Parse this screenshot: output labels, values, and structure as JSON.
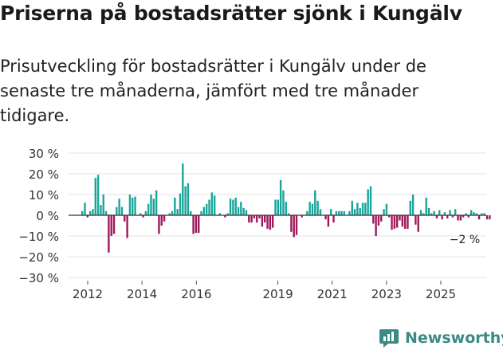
{
  "title": "Priserna på bostadsrätter sjönk i Kungälv",
  "subtitle": "Prisutveckling för bostadsrätter i Kungälv under de senaste tre månaderna, jämfört med tre månader tidigare.",
  "brand": {
    "name": "Newsworthy",
    "icon": "newsworthy-logo-icon",
    "color": "#3b8a84"
  },
  "colors": {
    "positive": "#1aa59a",
    "negative": "#9e1a5a",
    "grid": "#e3e3e3",
    "axis": "#333333"
  },
  "chart_data": {
    "type": "bar",
    "title": "Priserna på bostadsrätter sjönk i Kungälv",
    "xlabel": "",
    "ylabel": "",
    "unit": "%",
    "x_start": 2011.8,
    "x_end": 2026.8,
    "ylim": [
      -30,
      30
    ],
    "y_ticks": [
      {
        "value": 30,
        "label": "30 %"
      },
      {
        "value": 20,
        "label": "20 %"
      },
      {
        "value": 10,
        "label": "10 %"
      },
      {
        "value": 0,
        "label": "0 %"
      },
      {
        "value": -10,
        "label": "−10 %"
      },
      {
        "value": -20,
        "label": "−20 %"
      },
      {
        "value": -30,
        "label": "−30 %"
      }
    ],
    "x_ticks": [
      {
        "value": 2012,
        "label": "2012"
      },
      {
        "value": 2014,
        "label": "2014"
      },
      {
        "value": 2016,
        "label": "2016"
      },
      {
        "value": 2019,
        "label": "2019"
      },
      {
        "value": 2021,
        "label": "2021"
      },
      {
        "value": 2023,
        "label": "2023"
      },
      {
        "value": 2025,
        "label": "2025"
      }
    ],
    "annotation": {
      "text": "−2 %",
      "x": 2026.2,
      "value": -2
    },
    "series": [
      {
        "name": "Prisutveckling",
        "points": [
          [
            2012.1,
            2
          ],
          [
            2012.2,
            6
          ],
          [
            2012.3,
            -1
          ],
          [
            2012.4,
            2
          ],
          [
            2012.5,
            3
          ],
          [
            2012.6,
            18
          ],
          [
            2012.7,
            19.5
          ],
          [
            2012.8,
            5
          ],
          [
            2012.9,
            10
          ],
          [
            2013.0,
            2
          ],
          [
            2013.1,
            -18
          ],
          [
            2013.2,
            -10
          ],
          [
            2013.3,
            -9
          ],
          [
            2013.4,
            4
          ],
          [
            2013.5,
            8
          ],
          [
            2013.6,
            4
          ],
          [
            2013.7,
            -3
          ],
          [
            2013.8,
            -11
          ],
          [
            2013.9,
            10
          ],
          [
            2014.0,
            8.5
          ],
          [
            2014.1,
            9
          ],
          [
            2014.3,
            1
          ],
          [
            2014.4,
            -1
          ],
          [
            2014.5,
            2
          ],
          [
            2014.6,
            5.5
          ],
          [
            2014.7,
            10
          ],
          [
            2014.8,
            8
          ],
          [
            2014.9,
            12
          ],
          [
            2015.0,
            -9
          ],
          [
            2015.1,
            -5
          ],
          [
            2015.2,
            -3
          ],
          [
            2015.4,
            1
          ],
          [
            2015.5,
            2
          ],
          [
            2015.6,
            8.5
          ],
          [
            2015.7,
            3
          ],
          [
            2015.8,
            10.5
          ],
          [
            2015.9,
            25
          ],
          [
            2016.0,
            14
          ],
          [
            2016.1,
            15.5
          ],
          [
            2016.2,
            2
          ],
          [
            2016.3,
            -9
          ],
          [
            2016.4,
            -8.5
          ],
          [
            2016.5,
            -8.5
          ],
          [
            2016.6,
            2
          ],
          [
            2016.7,
            4
          ],
          [
            2016.8,
            5.5
          ],
          [
            2016.9,
            7.5
          ],
          [
            2017.0,
            11
          ],
          [
            2017.1,
            9.5
          ],
          [
            2017.3,
            1
          ],
          [
            2017.5,
            -1
          ],
          [
            2017.6,
            1
          ],
          [
            2017.7,
            8
          ],
          [
            2017.8,
            7.5
          ],
          [
            2017.9,
            8.5
          ],
          [
            2018.0,
            4
          ],
          [
            2018.1,
            6.5
          ],
          [
            2018.2,
            3.5
          ],
          [
            2018.3,
            2.5
          ],
          [
            2018.4,
            -3.5
          ],
          [
            2018.5,
            -3.5
          ],
          [
            2018.6,
            -1.5
          ],
          [
            2018.7,
            -3.5
          ],
          [
            2018.8,
            -1.5
          ],
          [
            2018.9,
            -5.5
          ],
          [
            2019.0,
            -3.5
          ],
          [
            2019.1,
            -6.5
          ],
          [
            2019.2,
            -7
          ],
          [
            2019.3,
            -6
          ],
          [
            2019.4,
            7.5
          ],
          [
            2019.5,
            7.5
          ],
          [
            2019.6,
            17
          ],
          [
            2019.7,
            12
          ],
          [
            2019.8,
            6.5
          ],
          [
            2019.9,
            1
          ],
          [
            2020.0,
            -8
          ],
          [
            2020.1,
            -10.5
          ],
          [
            2020.2,
            -9.5
          ],
          [
            2020.4,
            -1
          ],
          [
            2020.6,
            2
          ],
          [
            2020.7,
            6.5
          ],
          [
            2020.8,
            5.5
          ],
          [
            2020.9,
            12
          ],
          [
            2021.0,
            7
          ],
          [
            2021.1,
            3
          ],
          [
            2021.3,
            -2
          ],
          [
            2021.4,
            -5.5
          ],
          [
            2021.5,
            3
          ],
          [
            2021.6,
            -3.5
          ],
          [
            2021.7,
            2
          ],
          [
            2021.8,
            2
          ],
          [
            2021.9,
            2
          ],
          [
            2022.0,
            2
          ],
          [
            2022.2,
            2
          ],
          [
            2022.3,
            7
          ],
          [
            2022.4,
            3
          ],
          [
            2022.5,
            6
          ],
          [
            2022.6,
            3.5
          ],
          [
            2022.7,
            6
          ],
          [
            2022.8,
            6
          ],
          [
            2022.9,
            12.5
          ],
          [
            2023.0,
            14
          ],
          [
            2023.1,
            -4
          ],
          [
            2023.2,
            -10
          ],
          [
            2023.3,
            -5
          ],
          [
            2023.4,
            -3
          ],
          [
            2023.5,
            3
          ],
          [
            2023.6,
            5.5
          ],
          [
            2023.7,
            -1
          ],
          [
            2023.8,
            -7
          ],
          [
            2023.9,
            -6.5
          ],
          [
            2024.0,
            -6
          ],
          [
            2024.1,
            -2.5
          ],
          [
            2024.2,
            -5.5
          ],
          [
            2024.3,
            -6.5
          ],
          [
            2024.4,
            -6.5
          ],
          [
            2024.5,
            7
          ],
          [
            2024.6,
            10
          ],
          [
            2024.7,
            -4.5
          ],
          [
            2024.8,
            -8
          ],
          [
            2024.9,
            2.5
          ],
          [
            2025.0,
            1
          ],
          [
            2025.1,
            8.5
          ],
          [
            2025.2,
            3.5
          ],
          [
            2025.3,
            1
          ],
          [
            2025.4,
            2
          ],
          [
            2025.5,
            -1.5
          ],
          [
            2025.6,
            2.5
          ],
          [
            2025.7,
            -2
          ],
          [
            2025.8,
            1.5
          ],
          [
            2025.9,
            -1.5
          ],
          [
            2026.0,
            2.5
          ],
          [
            2026.1,
            -1
          ],
          [
            2026.2,
            3
          ],
          [
            2026.3,
            -2.5
          ],
          [
            2026.4,
            -2.5
          ],
          [
            2026.5,
            -1
          ],
          [
            2026.6,
            1
          ],
          [
            2026.7,
            -1
          ],
          [
            2026.8,
            2.5
          ],
          [
            2026.9,
            1.5
          ],
          [
            2027.0,
            1
          ],
          [
            2027.1,
            -2
          ],
          [
            2027.2,
            1
          ],
          [
            2027.3,
            1
          ],
          [
            2027.4,
            -2
          ],
          [
            2027.5,
            -2
          ]
        ]
      }
    ]
  }
}
